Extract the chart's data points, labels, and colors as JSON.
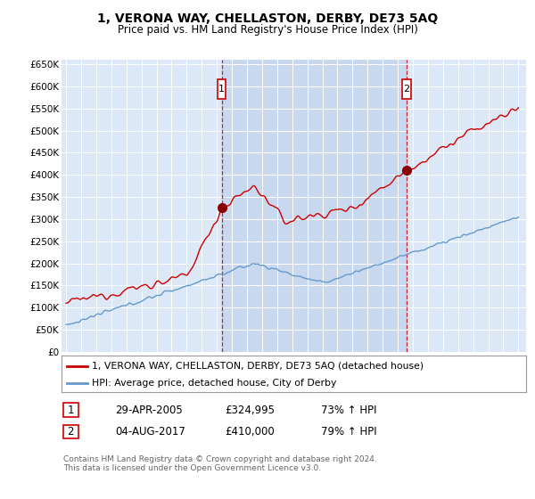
{
  "title": "1, VERONA WAY, CHELLASTON, DERBY, DE73 5AQ",
  "subtitle": "Price paid vs. HM Land Registry's House Price Index (HPI)",
  "ylim": [
    0,
    660000
  ],
  "yticks": [
    0,
    50000,
    100000,
    150000,
    200000,
    250000,
    300000,
    350000,
    400000,
    450000,
    500000,
    550000,
    600000,
    650000
  ],
  "ytick_labels": [
    "£0",
    "£50K",
    "£100K",
    "£150K",
    "£200K",
    "£250K",
    "£300K",
    "£350K",
    "£400K",
    "£450K",
    "£500K",
    "£550K",
    "£600K",
    "£650K"
  ],
  "xlim": [
    1994.7,
    2025.5
  ],
  "sale1_x": 2005.32,
  "sale1_y": 324995,
  "sale2_x": 2017.58,
  "sale2_y": 410000,
  "legend_line1": "1, VERONA WAY, CHELLASTON, DERBY, DE73 5AQ (detached house)",
  "legend_line2": "HPI: Average price, detached house, City of Derby",
  "annotation1_date": "29-APR-2005",
  "annotation1_price": "£324,995",
  "annotation1_hpi": "73% ↑ HPI",
  "annotation2_date": "04-AUG-2017",
  "annotation2_price": "£410,000",
  "annotation2_hpi": "79% ↑ HPI",
  "footer": "Contains HM Land Registry data © Crown copyright and database right 2024.\nThis data is licensed under the Open Government Licence v3.0.",
  "red_color": "#cc0000",
  "blue_color": "#6699cc",
  "plot_bg_color": "#dce8f5",
  "shade_color": "#c8d8ee"
}
